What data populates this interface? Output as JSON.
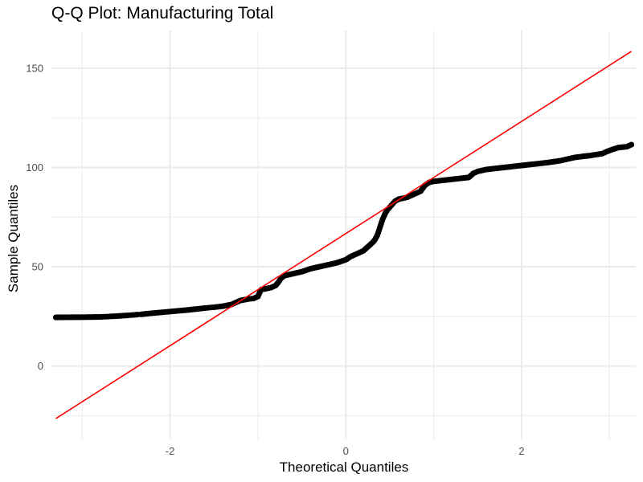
{
  "chart_data": {
    "type": "scatter",
    "title": "Q-Q Plot: Manufacturing Total",
    "xlabel": "Theoretical Quantiles",
    "ylabel": "Sample Quantiles",
    "xlim": [
      -3.35,
      3.3
    ],
    "ylim": [
      -37,
      169
    ],
    "x_ticks": [
      -2,
      0,
      2
    ],
    "y_ticks": [
      0,
      50,
      100,
      150
    ],
    "x_minor_ticks": [
      -3,
      -1,
      1,
      3
    ],
    "y_minor_ticks": [
      -25,
      25,
      75,
      125
    ],
    "grid": true,
    "background": "#ffffff",
    "grid_color": "#ebebeb",
    "point_color": "#000000",
    "line_color": "#ff0000",
    "reference_line": {
      "x": [
        -3.3,
        3.25
      ],
      "y": [
        -26.5,
        158.5
      ]
    },
    "points": [
      [
        -3.3,
        24.5
      ],
      [
        -2.95,
        24.6
      ],
      [
        -2.8,
        24.7
      ],
      [
        -2.7,
        24.9
      ],
      [
        -2.62,
        25.1
      ],
      [
        -2.55,
        25.3
      ],
      [
        -2.48,
        25.5
      ],
      [
        -2.42,
        25.7
      ],
      [
        -2.37,
        25.9
      ],
      [
        -2.33,
        26.0
      ],
      [
        -2.29,
        26.2
      ],
      [
        -2.25,
        26.4
      ],
      [
        -2.2,
        26.6
      ],
      [
        -2.15,
        26.8
      ],
      [
        -2.1,
        27.0
      ],
      [
        -2.05,
        27.2
      ],
      [
        -2.0,
        27.4
      ],
      [
        -1.9,
        27.8
      ],
      [
        -1.8,
        28.2
      ],
      [
        -1.7,
        28.7
      ],
      [
        -1.6,
        29.2
      ],
      [
        -1.5,
        29.6
      ],
      [
        -1.4,
        30.1
      ],
      [
        -1.3,
        31.0
      ],
      [
        -1.25,
        32.0
      ],
      [
        -1.2,
        33.0
      ],
      [
        -1.1,
        33.8
      ],
      [
        -1.05,
        34.0
      ],
      [
        -1.0,
        35.0
      ],
      [
        -0.98,
        37.0
      ],
      [
        -0.96,
        38.5
      ],
      [
        -0.9,
        39.0
      ],
      [
        -0.85,
        39.5
      ],
      [
        -0.8,
        40.5
      ],
      [
        -0.77,
        42.0
      ],
      [
        -0.74,
        44.0
      ],
      [
        -0.7,
        45.5
      ],
      [
        -0.6,
        46.5
      ],
      [
        -0.5,
        47.5
      ],
      [
        -0.4,
        49.0
      ],
      [
        -0.3,
        50.0
      ],
      [
        -0.2,
        51.0
      ],
      [
        -0.1,
        52.0
      ],
      [
        0.0,
        53.5
      ],
      [
        0.05,
        55.0
      ],
      [
        0.1,
        56.0
      ],
      [
        0.15,
        57.0
      ],
      [
        0.2,
        58.0
      ],
      [
        0.25,
        60.0
      ],
      [
        0.3,
        62.0
      ],
      [
        0.33,
        63.5
      ],
      [
        0.36,
        66.0
      ],
      [
        0.39,
        70.0
      ],
      [
        0.42,
        74.0
      ],
      [
        0.45,
        77.0
      ],
      [
        0.48,
        79.0
      ],
      [
        0.52,
        81.0
      ],
      [
        0.56,
        83.0
      ],
      [
        0.6,
        84.0
      ],
      [
        0.65,
        84.5
      ],
      [
        0.7,
        85.0
      ],
      [
        0.75,
        86.0
      ],
      [
        0.8,
        87.0
      ],
      [
        0.85,
        88.0
      ],
      [
        0.9,
        91.0
      ],
      [
        0.95,
        92.5
      ],
      [
        1.0,
        93.0
      ],
      [
        1.1,
        93.5
      ],
      [
        1.2,
        94.0
      ],
      [
        1.3,
        94.5
      ],
      [
        1.4,
        95.0
      ],
      [
        1.45,
        97.0
      ],
      [
        1.5,
        98.0
      ],
      [
        1.6,
        99.0
      ],
      [
        1.7,
        99.5
      ],
      [
        1.8,
        100.0
      ],
      [
        1.9,
        100.5
      ],
      [
        2.0,
        101.0
      ],
      [
        2.1,
        101.5
      ],
      [
        2.2,
        102.0
      ],
      [
        2.3,
        102.5
      ],
      [
        2.38,
        103.0
      ],
      [
        2.45,
        103.5
      ],
      [
        2.5,
        104.0
      ],
      [
        2.55,
        104.5
      ],
      [
        2.6,
        105.0
      ],
      [
        2.65,
        105.3
      ],
      [
        2.7,
        105.6
      ],
      [
        2.78,
        106.0
      ],
      [
        2.85,
        106.5
      ],
      [
        2.92,
        107.0
      ],
      [
        2.97,
        108.0
      ],
      [
        3.03,
        109.0
      ],
      [
        3.1,
        110.0
      ],
      [
        3.2,
        110.5
      ],
      [
        3.25,
        111.5
      ]
    ]
  }
}
